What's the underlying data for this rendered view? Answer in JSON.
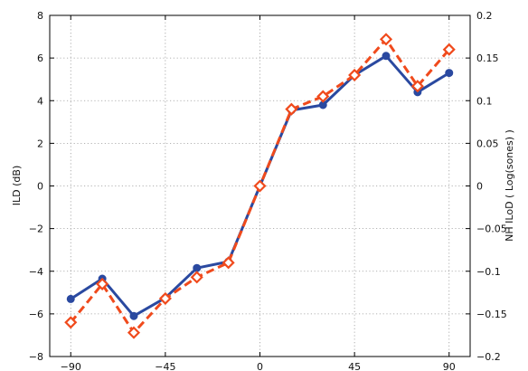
{
  "chart_data": {
    "type": "line",
    "xlabel": "",
    "ylabel_left": "ILD (dB)",
    "ylabel_right": "NH ILoD ( Log(sones) )",
    "xlim": [
      -100,
      100
    ],
    "ylim_left": [
      -8,
      8
    ],
    "ylim_right": [
      -0.2,
      0.2
    ],
    "grid": true,
    "x_ticks": [
      -90,
      -45,
      0,
      45,
      90
    ],
    "x_tick_labels": [
      "−90",
      "−45",
      "0",
      "45",
      "90"
    ],
    "y_left_ticks": [
      -8,
      -6,
      -4,
      -2,
      0,
      2,
      4,
      6,
      8
    ],
    "y_left_tick_labels": [
      "−8",
      "−6",
      "−4",
      "−2",
      "0",
      "2",
      "4",
      "6",
      "8"
    ],
    "y_right_ticks": [
      -0.2,
      -0.15,
      -0.1,
      -0.05,
      0,
      0.05,
      0.1,
      0.15,
      0.2
    ],
    "y_right_tick_labels": [
      "−0.2",
      "−0.15",
      "−0.1",
      "−0.05",
      "0",
      "0.05",
      "0.1",
      "0.15",
      "0.2"
    ],
    "x": [
      -90,
      -75,
      -60,
      -45,
      -30,
      -15,
      0,
      15,
      30,
      45,
      60,
      75,
      90
    ],
    "series": [
      {
        "axis": "left",
        "color": "#2a49a0",
        "line_style": "solid",
        "marker": "circle",
        "values": [
          -5.3,
          -4.35,
          -6.1,
          -5.25,
          -3.85,
          -3.55,
          0.0,
          3.55,
          3.8,
          5.2,
          6.1,
          4.4,
          5.3
        ]
      },
      {
        "axis": "right",
        "color": "#f04a1c",
        "line_style": "dashed",
        "marker": "diamond",
        "values": [
          -0.16,
          -0.115,
          -0.172,
          -0.132,
          -0.107,
          -0.09,
          0.0,
          0.09,
          0.105,
          0.13,
          0.172,
          0.117,
          0.16
        ]
      }
    ]
  }
}
